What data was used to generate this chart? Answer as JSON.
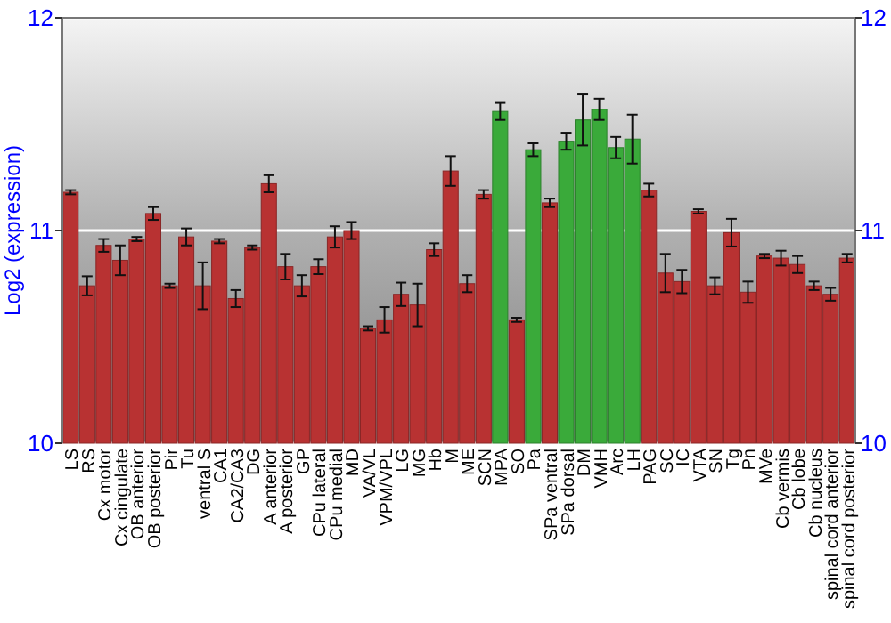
{
  "chart_data": {
    "type": "bar",
    "ylabel": "Log2 (expression)",
    "categories": [
      "LS",
      "RS",
      "Cx motor",
      "Cx cingulate",
      "OB anterior",
      "OB posterior",
      "Pir",
      "Tu",
      "ventral S",
      "CA1",
      "CA2/CA3",
      "DG",
      "A anterior",
      "A posterior",
      "GP",
      "CPu lateral",
      "CPu medial",
      "MD",
      "VA/VL",
      "VPM/VPL",
      "LG",
      "MG",
      "Hb",
      "M",
      "ME",
      "SCN",
      "MPA",
      "SO",
      "Pa",
      "SPa ventral",
      "SPa dorsal",
      "DM",
      "VMH",
      "Arc",
      "LH",
      "PAG",
      "SC",
      "IC",
      "VTA",
      "SN",
      "Tg",
      "Pn",
      "MVe",
      "Cb vermis",
      "Cb lobe",
      "Cb nucleus",
      "spinal cord anterior",
      "spinal cord posterior"
    ],
    "values": [
      11.18,
      10.74,
      10.93,
      10.86,
      10.96,
      11.08,
      10.74,
      10.97,
      10.74,
      10.95,
      10.68,
      10.92,
      11.22,
      10.83,
      10.74,
      10.83,
      10.97,
      11.0,
      10.54,
      10.58,
      10.7,
      10.65,
      10.91,
      11.28,
      10.75,
      11.17,
      11.56,
      10.58,
      11.38,
      11.13,
      11.42,
      11.52,
      11.57,
      11.39,
      11.43,
      11.19,
      10.8,
      10.76,
      11.09,
      10.74,
      10.99,
      10.71,
      10.88,
      10.87,
      10.84,
      10.74,
      10.7,
      10.87
    ],
    "errors": [
      0.01,
      0.045,
      0.03,
      0.07,
      0.01,
      0.03,
      0.01,
      0.04,
      0.11,
      0.01,
      0.04,
      0.01,
      0.04,
      0.06,
      0.05,
      0.035,
      0.05,
      0.04,
      0.01,
      0.06,
      0.055,
      0.1,
      0.03,
      0.07,
      0.04,
      0.02,
      0.04,
      0.01,
      0.03,
      0.02,
      0.04,
      0.12,
      0.05,
      0.05,
      0.115,
      0.03,
      0.09,
      0.055,
      0.01,
      0.04,
      0.065,
      0.05,
      0.01,
      0.035,
      0.04,
      0.02,
      0.03,
      0.02
    ],
    "colors": [
      "#b83232",
      "#b83232",
      "#b83232",
      "#b83232",
      "#b83232",
      "#b83232",
      "#b83232",
      "#b83232",
      "#b83232",
      "#b83232",
      "#b83232",
      "#b83232",
      "#b83232",
      "#b83232",
      "#b83232",
      "#b83232",
      "#b83232",
      "#b83232",
      "#b83232",
      "#b83232",
      "#b83232",
      "#b83232",
      "#b83232",
      "#b83232",
      "#b83232",
      "#b83232",
      "#3aaa3a",
      "#b83232",
      "#3aaa3a",
      "#b83232",
      "#3aaa3a",
      "#3aaa3a",
      "#3aaa3a",
      "#3aaa3a",
      "#3aaa3a",
      "#b83232",
      "#b83232",
      "#b83232",
      "#b83232",
      "#b83232",
      "#b83232",
      "#b83232",
      "#b83232",
      "#b83232",
      "#b83232",
      "#b83232",
      "#b83232",
      "#b83232"
    ],
    "ylim": [
      10,
      12
    ],
    "yticks": [
      10,
      11,
      12
    ],
    "y2lim": [
      10,
      12
    ],
    "y2ticks": [
      10,
      11,
      12
    ],
    "grid": "y"
  }
}
